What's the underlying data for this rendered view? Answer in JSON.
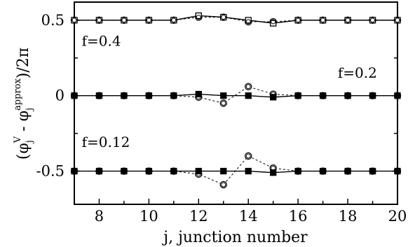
{
  "chart_data": {
    "type": "scatter",
    "xlabel": "j, junction number",
    "ylabel": {
      "open": "(φ",
      "sub1": "j",
      "sup1": "V",
      "mid": " - φ",
      "sub2": "j",
      "sup2": "approx",
      "close": ")/2π"
    },
    "xlim": [
      7,
      20
    ],
    "ylim": [
      -0.72,
      0.62
    ],
    "xticks": [
      8,
      10,
      12,
      14,
      16,
      18,
      20
    ],
    "xtick_labels": [
      "8",
      "10",
      "12",
      "14",
      "16",
      "18",
      "20"
    ],
    "yticks": [
      0.5,
      0,
      -0.5
    ],
    "ytick_labels": [
      "0.5",
      "0",
      "-0.5"
    ],
    "annotations": [
      {
        "text": "f=0.4",
        "x": 7.3,
        "y": 0.33
      },
      {
        "text": "f=0.2",
        "x": 17.6,
        "y": 0.12
      },
      {
        "text": "f=0.12",
        "x": 7.3,
        "y": -0.34
      }
    ],
    "series": [
      {
        "group": "f=0.4",
        "marker": "square-open",
        "line": "solid",
        "x": [
          7,
          8,
          9,
          10,
          11,
          12,
          13,
          14,
          15,
          16,
          17,
          18,
          19,
          20
        ],
        "y": [
          0.5,
          0.5,
          0.5,
          0.5,
          0.5,
          0.53,
          0.52,
          0.5,
          0.48,
          0.5,
          0.5,
          0.5,
          0.5,
          0.5
        ]
      },
      {
        "group": "f=0.4",
        "marker": "circle-open",
        "line": "dashed",
        "x": [
          7,
          8,
          9,
          10,
          11,
          12,
          13,
          14,
          15,
          16,
          17,
          18,
          19,
          20
        ],
        "y": [
          0.5,
          0.5,
          0.5,
          0.5,
          0.5,
          0.52,
          0.52,
          0.49,
          0.49,
          0.5,
          0.5,
          0.5,
          0.5,
          0.5
        ]
      },
      {
        "group": "f=0.2",
        "marker": "square-filled",
        "line": "solid",
        "x": [
          7,
          8,
          9,
          10,
          11,
          12,
          13,
          14,
          15,
          16,
          17,
          18,
          19,
          20
        ],
        "y": [
          0,
          0,
          0,
          0,
          0,
          0.01,
          0,
          0,
          -0.01,
          0,
          0,
          0,
          0,
          0
        ]
      },
      {
        "group": "f=0.2",
        "marker": "circle-open",
        "line": "dashed",
        "x": [
          7,
          8,
          9,
          10,
          11,
          12,
          13,
          14,
          15,
          16,
          17,
          18,
          19,
          20
        ],
        "y": [
          0,
          0,
          0,
          0,
          0,
          -0.01,
          -0.05,
          0.06,
          0.01,
          0,
          0,
          0,
          0,
          0
        ]
      },
      {
        "group": "f=0.12",
        "marker": "square-filled",
        "line": "solid",
        "x": [
          7,
          8,
          9,
          10,
          11,
          12,
          13,
          14,
          15,
          16,
          17,
          18,
          19,
          20
        ],
        "y": [
          -0.5,
          -0.5,
          -0.5,
          -0.5,
          -0.5,
          -0.5,
          -0.5,
          -0.5,
          -0.51,
          -0.5,
          -0.5,
          -0.5,
          -0.5,
          -0.5
        ]
      },
      {
        "group": "f=0.12",
        "marker": "circle-open",
        "line": "dashed",
        "x": [
          7,
          8,
          9,
          10,
          11,
          12,
          13,
          14,
          15,
          16,
          17,
          18,
          19,
          20
        ],
        "y": [
          -0.5,
          -0.5,
          -0.5,
          -0.5,
          -0.5,
          -0.52,
          -0.59,
          -0.4,
          -0.48,
          -0.5,
          -0.5,
          -0.5,
          -0.5,
          -0.5
        ]
      }
    ],
    "grid": false,
    "colors": {
      "ink": "#000000",
      "background": "#ffffff"
    }
  }
}
